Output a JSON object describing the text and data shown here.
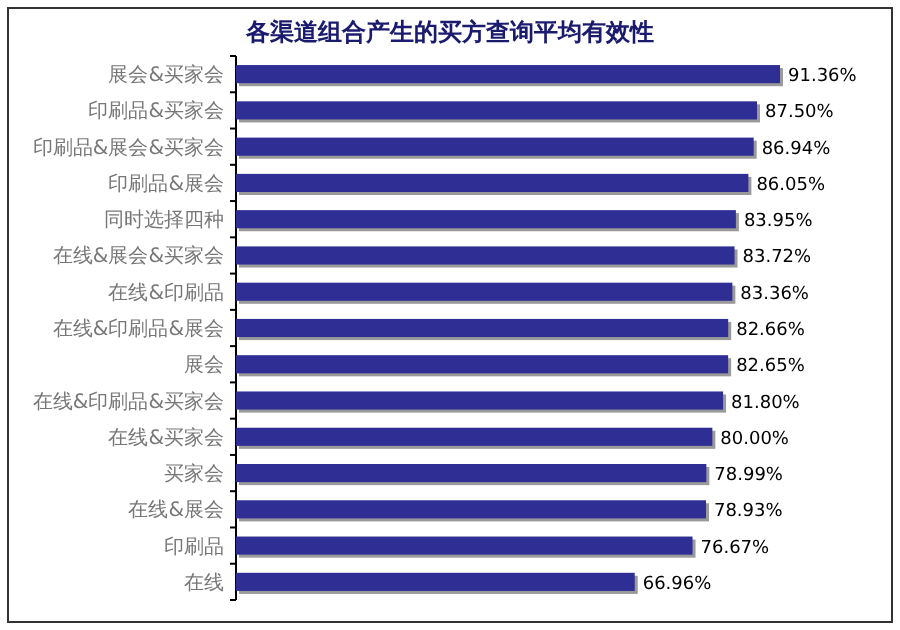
{
  "chart_data": {
    "type": "bar",
    "orientation": "horizontal",
    "title": "各渠道组合产生的买方查询平均有效性",
    "categories": [
      "展会&买家会",
      "印刷品&买家会",
      "印刷品&展会&买家会",
      "印刷品&展会",
      "同时选择四种",
      "在线&展会&买家会",
      "在线&印刷品",
      "在线&印刷品&展会",
      "展会",
      "在线&印刷品&买家会",
      "在线&买家会",
      "买家会",
      "在线&展会",
      "印刷品",
      "在线"
    ],
    "values": [
      91.36,
      87.5,
      86.94,
      86.05,
      83.95,
      83.72,
      83.36,
      82.66,
      82.65,
      81.8,
      80.0,
      78.99,
      78.93,
      76.67,
      66.96
    ],
    "value_labels": [
      "91.36%",
      "87.50%",
      "86.94%",
      "86.05%",
      "83.95%",
      "83.72%",
      "83.36%",
      "82.66%",
      "82.65%",
      "81.80%",
      "80.00%",
      "78.99%",
      "78.93%",
      "76.67%",
      "66.96%"
    ],
    "color": "#2e2e94"
  }
}
